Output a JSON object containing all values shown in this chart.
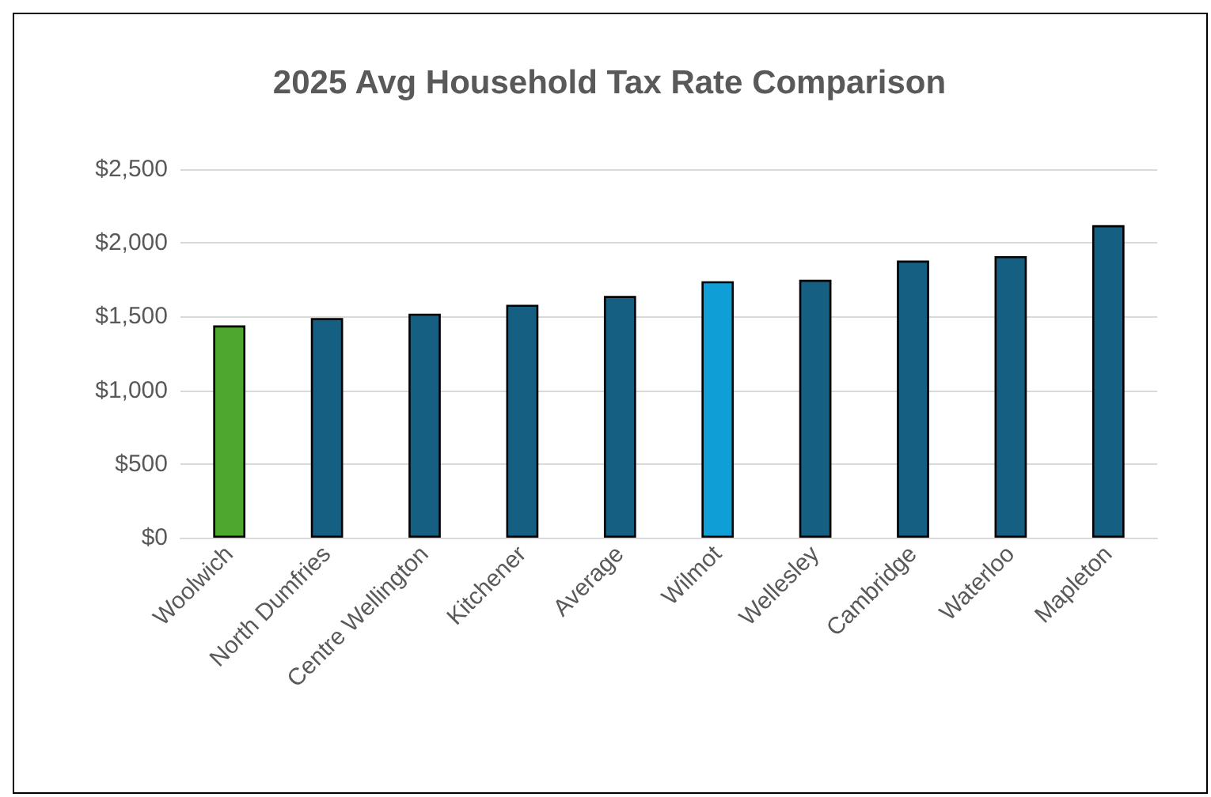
{
  "chart_data": {
    "type": "bar",
    "title": "2025 Avg Household Tax Rate Comparison",
    "categories": [
      "Woolwich",
      "North Dumfries",
      "Centre Wellington",
      "Kitchener",
      "Average",
      "Wilmot",
      "Wellesley",
      "Cambridge",
      "Waterloo",
      "Mapleton"
    ],
    "values": [
      1440,
      1490,
      1520,
      1580,
      1640,
      1740,
      1750,
      1880,
      1910,
      2120
    ],
    "colors": [
      "#4ea72e",
      "#156082",
      "#156082",
      "#156082",
      "#156082",
      "#0f9ed5",
      "#156082",
      "#156082",
      "#156082",
      "#156082"
    ],
    "ylim": [
      0,
      2500
    ],
    "yticks": [
      {
        "value": 0,
        "label": "$0"
      },
      {
        "value": 500,
        "label": "$500"
      },
      {
        "value": 1000,
        "label": "$1,000"
      },
      {
        "value": 1500,
        "label": "$1,500"
      },
      {
        "value": 2000,
        "label": "$2,000"
      },
      {
        "value": 2500,
        "label": "$2,500"
      }
    ],
    "grid": "y"
  }
}
